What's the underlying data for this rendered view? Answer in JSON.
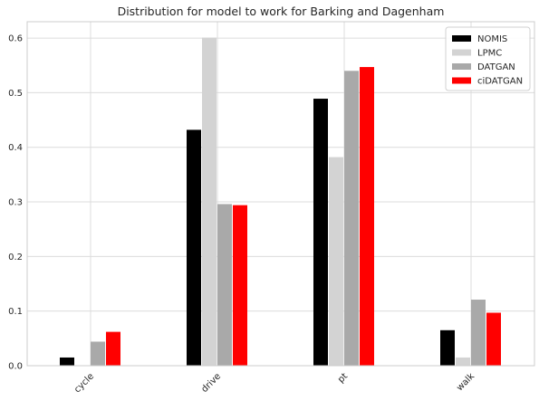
{
  "chart_data": {
    "type": "bar",
    "title": "Distribution for model to work for Barking and Dagenham",
    "xlabel": "",
    "ylabel": "",
    "categories": [
      "cycle",
      "drive",
      "pt",
      "walk"
    ],
    "ylim": [
      0,
      0.63
    ],
    "yticks": [
      "0.0",
      "0.1",
      "0.2",
      "0.3",
      "0.4",
      "0.5",
      "0.6"
    ],
    "grid": true,
    "legend_position": "top-right",
    "series": [
      {
        "name": "NOMIS",
        "color": "#000000",
        "values": [
          0.015,
          0.432,
          0.489,
          0.065
        ]
      },
      {
        "name": "LPMC",
        "color": "#d3d3d3",
        "values": [
          0.0,
          0.601,
          0.382,
          0.015
        ]
      },
      {
        "name": "DATGAN",
        "color": "#a9a9a9",
        "values": [
          0.044,
          0.296,
          0.54,
          0.121
        ]
      },
      {
        "name": "ciDATGAN",
        "color": "#ff0000",
        "values": [
          0.062,
          0.294,
          0.547,
          0.097
        ]
      }
    ]
  }
}
